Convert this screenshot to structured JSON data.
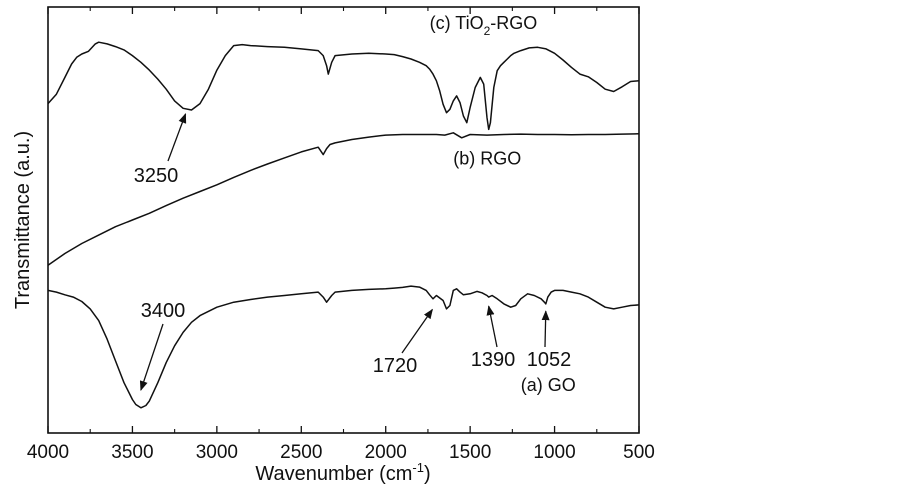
{
  "chart_data": {
    "type": "line",
    "xlabel": "Wavenumber (cm",
    "xlabel_sup": "-1",
    "xlabel_close": ")",
    "ylabel": "Transmittance (a.u.)",
    "xlim": [
      4000,
      500
    ],
    "x_ticks": [
      "4000",
      "3500",
      "3000",
      "2500",
      "2000",
      "1500",
      "1000",
      "500"
    ],
    "grid": false,
    "series": [
      {
        "name": "(c) TiO2-RGO",
        "label_parts": [
          "(c) TiO",
          "2",
          "-RGO"
        ],
        "x": [
          4000,
          3950,
          3900,
          3860,
          3830,
          3800,
          3760,
          3720,
          3700,
          3650,
          3600,
          3550,
          3500,
          3450,
          3400,
          3350,
          3300,
          3250,
          3200,
          3150,
          3100,
          3050,
          3000,
          2950,
          2900,
          2850,
          2800,
          2700,
          2600,
          2500,
          2400,
          2370,
          2350,
          2340,
          2320,
          2300,
          2200,
          2100,
          2000,
          1950,
          1900,
          1850,
          1800,
          1760,
          1740,
          1720,
          1700,
          1680,
          1660,
          1640,
          1620,
          1600,
          1580,
          1560,
          1540,
          1520,
          1500,
          1470,
          1440,
          1420,
          1400,
          1390,
          1380,
          1360,
          1340,
          1320,
          1300,
          1280,
          1260,
          1240,
          1200,
          1150,
          1100,
          1050,
          1000,
          950,
          900,
          850,
          800,
          750,
          700,
          650,
          600,
          550,
          500
        ],
        "y": [
          6.12,
          6.4,
          6.9,
          7.3,
          7.5,
          7.6,
          7.68,
          7.9,
          7.95,
          7.9,
          7.82,
          7.72,
          7.55,
          7.35,
          7.12,
          6.85,
          6.55,
          6.2,
          5.98,
          5.93,
          6.12,
          6.55,
          7.12,
          7.55,
          7.85,
          7.88,
          7.85,
          7.82,
          7.8,
          7.75,
          7.7,
          7.55,
          7.25,
          7.0,
          7.35,
          7.55,
          7.6,
          7.62,
          7.6,
          7.58,
          7.52,
          7.45,
          7.35,
          7.25,
          7.15,
          7.0,
          6.8,
          6.5,
          6.1,
          5.85,
          5.95,
          6.2,
          6.35,
          6.15,
          5.75,
          5.55,
          6.0,
          6.6,
          6.9,
          6.7,
          5.7,
          5.35,
          5.55,
          6.6,
          7.1,
          7.25,
          7.35,
          7.45,
          7.55,
          7.62,
          7.7,
          7.78,
          7.8,
          7.75,
          7.62,
          7.42,
          7.2,
          7.0,
          6.92,
          6.75,
          6.55,
          6.48,
          6.62,
          6.78,
          6.8
        ]
      },
      {
        "name": "(b) RGO",
        "label_parts": [
          "(b) RGO"
        ],
        "x": [
          4000,
          3900,
          3800,
          3700,
          3600,
          3500,
          3400,
          3300,
          3200,
          3100,
          3000,
          2900,
          2800,
          2700,
          2600,
          2500,
          2400,
          2370,
          2350,
          2330,
          2300,
          2200,
          2100,
          2000,
          1900,
          1800,
          1700,
          1650,
          1600,
          1550,
          1500,
          1400,
          1300,
          1200,
          1100,
          1000,
          900,
          800,
          700,
          600,
          500
        ],
        "y": [
          1.3,
          1.65,
          1.95,
          2.2,
          2.45,
          2.65,
          2.85,
          3.08,
          3.3,
          3.5,
          3.7,
          3.92,
          4.13,
          4.32,
          4.5,
          4.68,
          4.82,
          4.6,
          4.78,
          4.9,
          4.95,
          5.05,
          5.12,
          5.18,
          5.2,
          5.2,
          5.2,
          5.18,
          5.25,
          5.1,
          5.2,
          5.18,
          5.2,
          5.21,
          5.2,
          5.2,
          5.19,
          5.2,
          5.2,
          5.21,
          5.22
        ]
      },
      {
        "name": "(a) GO",
        "label_parts": [
          "(a) GO"
        ],
        "x": [
          4000,
          3950,
          3900,
          3850,
          3800,
          3750,
          3700,
          3650,
          3600,
          3550,
          3500,
          3480,
          3450,
          3420,
          3400,
          3350,
          3300,
          3250,
          3200,
          3150,
          3100,
          3000,
          2900,
          2800,
          2700,
          2600,
          2500,
          2400,
          2370,
          2350,
          2320,
          2300,
          2200,
          2100,
          2000,
          1950,
          1900,
          1850,
          1800,
          1760,
          1740,
          1720,
          1700,
          1660,
          1640,
          1620,
          1600,
          1580,
          1560,
          1540,
          1500,
          1460,
          1430,
          1400,
          1390,
          1370,
          1340,
          1300,
          1260,
          1230,
          1200,
          1160,
          1120,
          1080,
          1060,
          1052,
          1040,
          1020,
          1000,
          950,
          900,
          850,
          800,
          750,
          700,
          650,
          600,
          550,
          500
        ],
        "y": [
          0.55,
          0.5,
          0.42,
          0.35,
          0.22,
          0.0,
          -0.35,
          -0.9,
          -1.55,
          -2.2,
          -2.7,
          -2.85,
          -2.95,
          -2.88,
          -2.75,
          -2.2,
          -1.6,
          -1.1,
          -0.7,
          -0.4,
          -0.2,
          0.05,
          0.2,
          0.28,
          0.35,
          0.4,
          0.45,
          0.5,
          0.35,
          0.2,
          0.4,
          0.5,
          0.55,
          0.58,
          0.6,
          0.62,
          0.64,
          0.68,
          0.65,
          0.55,
          0.42,
          0.3,
          0.4,
          0.25,
          0.0,
          0.1,
          0.55,
          0.6,
          0.5,
          0.42,
          0.45,
          0.52,
          0.48,
          0.4,
          0.35,
          0.4,
          0.3,
          0.15,
          0.05,
          0.1,
          0.3,
          0.45,
          0.4,
          0.3,
          0.2,
          0.15,
          0.35,
          0.5,
          0.55,
          0.55,
          0.5,
          0.45,
          0.35,
          0.2,
          0.05,
          0.0,
          0.05,
          0.1,
          0.12
        ]
      }
    ],
    "annotations": [
      {
        "text": "3250",
        "x": 3150,
        "y": 5.93
      },
      {
        "text": "3400",
        "x": 3450,
        "y": -2.6
      },
      {
        "text": "1720",
        "x": 1700,
        "y": 0.1
      },
      {
        "text": "1390",
        "x": 1390,
        "y": 0.2
      },
      {
        "text": "1052",
        "x": 1052,
        "y": 0.05
      }
    ]
  }
}
